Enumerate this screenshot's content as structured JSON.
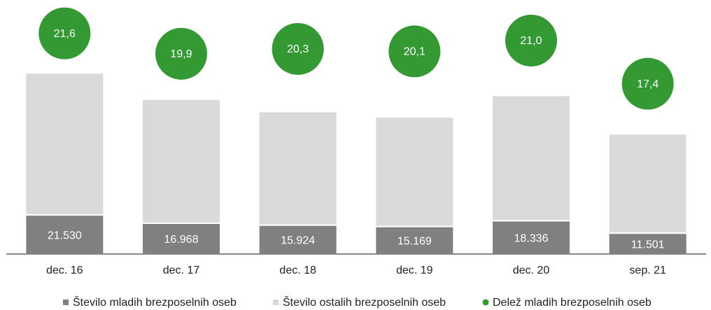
{
  "chart_data": {
    "type": "bar",
    "categories": [
      "dec. 16",
      "dec. 17",
      "dec. 18",
      "dec. 19",
      "dec. 20",
      "sep. 21"
    ],
    "series": [
      {
        "name": "Število mladih brezposelnih oseb",
        "color": "#808080",
        "values": [
          21530,
          16968,
          15924,
          15169,
          18336,
          11501
        ],
        "value_labels": [
          "21.530",
          "16.968",
          "15.924",
          "15.169",
          "18.336",
          "11.501"
        ]
      },
      {
        "name": "Število ostalih brezposelnih oseb",
        "color": "#d9d9d9",
        "values": [
          78100,
          68300,
          62500,
          60300,
          69000,
          54600
        ]
      },
      {
        "name": "Delež mladih brezposelnih oseb",
        "color": "#339933",
        "axis": "y2",
        "values": [
          21.6,
          19.9,
          20.3,
          20.1,
          21.0,
          17.4
        ],
        "value_labels": [
          "21,6",
          "19,9",
          "20,3",
          "20,1",
          "21,0",
          "17,4"
        ]
      }
    ],
    "stacked": true,
    "ylim": [
      0,
      136000
    ],
    "y2lim": [
      3.2,
      23.8
    ],
    "legend": "bottom"
  }
}
